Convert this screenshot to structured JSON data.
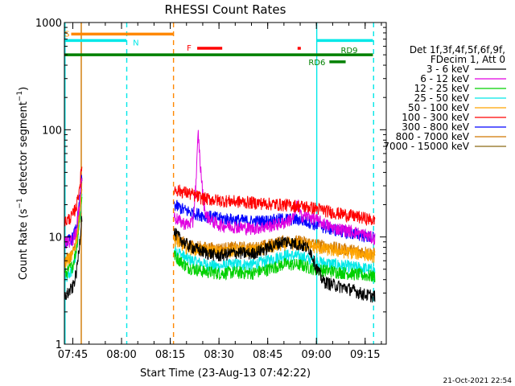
{
  "chart_data": {
    "type": "line",
    "title": "RHESSI Count Rates",
    "xlabel": "Start Time (23-Aug-13 07:42:22)",
    "ylabel": "Count Rate (s",
    "ylabel_sup": "−1",
    "ylabel_tail": " detector segment",
    "ylabel_end": ")",
    "yscale": "log",
    "x_unit": "minutes of day",
    "xlim": [
      462.4,
      561.5
    ],
    "ylim": [
      1,
      1000
    ],
    "y_ticks": [
      {
        "value": 1,
        "label": "1"
      },
      {
        "value": 10,
        "label": "10"
      },
      {
        "value": 100,
        "label": "100"
      },
      {
        "value": 1000,
        "label": "1000"
      }
    ],
    "x_ticks": [
      {
        "value": 465,
        "label": "07:45"
      },
      {
        "value": 480,
        "label": "08:00"
      },
      {
        "value": 495,
        "label": "08:15"
      },
      {
        "value": 510,
        "label": "08:30"
      },
      {
        "value": 525,
        "label": "08:45"
      },
      {
        "value": 540,
        "label": "09:00"
      },
      {
        "value": 555,
        "label": "09:15"
      }
    ],
    "legend": {
      "position": "right",
      "header": [
        "Det 1f,3f,4f,5f,6f,9f,",
        "FDecim 1, Att 0"
      ]
    },
    "series": [
      {
        "name": "3 - 6 keV",
        "color": "#000000",
        "segments": [
          {
            "x": [
              462.6,
              463.5,
              465.0,
              466.2,
              467.1,
              467.8
            ],
            "y": [
              2.8,
              3.0,
              3.4,
              4.8,
              9.0,
              16.0
            ]
          },
          {
            "x": [
              496.2,
              500,
              505,
              510,
              515,
              520,
              525,
              530,
              535,
              538,
              540,
              542,
              545,
              550,
              555,
              558
            ],
            "y": [
              11.0,
              8.5,
              7.3,
              6.7,
              7.2,
              7.0,
              7.9,
              9.2,
              8.5,
              7.7,
              5.2,
              3.9,
              3.6,
              3.3,
              2.9,
              2.8
            ]
          }
        ]
      },
      {
        "name": "6 - 12 keV",
        "color": "#e000e0",
        "segments": [
          {
            "x": [
              462.6,
              463.5,
              465.0,
              466.2,
              467.1,
              467.8
            ],
            "y": [
              9.0,
              9.0,
              9.5,
              12.0,
              22.0,
              38.0
            ]
          },
          {
            "x": [
              496.2,
              498,
              500,
              502,
              503,
              503.6,
              504.3,
              505.2,
              506,
              508,
              510,
              515,
              520,
              525,
              530,
              533,
              534.3,
              535,
              538,
              540,
              545,
              550,
              555,
              558
            ],
            "y": [
              15.5,
              14.0,
              13.2,
              13.6,
              35.0,
              95.0,
              45.0,
              22.0,
              16.0,
              14.0,
              13.0,
              12.5,
              12.0,
              12.6,
              13.6,
              15.2,
              21.0,
              16.0,
              15.5,
              14.5,
              12.2,
              11.5,
              10.5,
              9.6
            ]
          }
        ]
      },
      {
        "name": "12 - 25 keV",
        "color": "#00d000",
        "segments": [
          {
            "x": [
              462.6,
              463.5,
              465.0,
              466.2,
              467.1,
              467.8
            ],
            "y": [
              4.5,
              4.8,
              5.5,
              8.0,
              15.0,
              25.0
            ]
          },
          {
            "x": [
              496.2,
              500,
              505,
              510,
              515,
              520,
              525,
              530,
              535,
              538,
              540,
              545,
              550,
              555,
              558
            ],
            "y": [
              6.8,
              5.3,
              4.8,
              4.6,
              4.7,
              4.6,
              5.0,
              5.6,
              5.5,
              5.2,
              5.0,
              4.8,
              4.6,
              4.4,
              4.3
            ]
          }
        ]
      },
      {
        "name": "25 - 50 keV",
        "color": "#00e8e8",
        "segments": [
          {
            "x": [
              462.6,
              463.5,
              465.0,
              466.2,
              467.1,
              467.8
            ],
            "y": [
              4.0,
              4.3,
              5.0,
              7.5,
              14.0,
              24.0
            ]
          },
          {
            "x": [
              496.2,
              500,
              505,
              510,
              515,
              520,
              525,
              530,
              535,
              538,
              540,
              545,
              550,
              555,
              558
            ],
            "y": [
              7.8,
              6.3,
              5.6,
              5.3,
              5.6,
              5.5,
              6.0,
              6.8,
              6.6,
              6.2,
              5.9,
              5.6,
              5.3,
              5.1,
              4.9
            ]
          }
        ]
      },
      {
        "name": "50 - 100 keV",
        "color": "#ffa500",
        "segments": [
          {
            "x": [
              462.6,
              463.5,
              465.0,
              466.2,
              467.1,
              467.8
            ],
            "y": [
              5.8,
              6.2,
              6.8,
              9.5,
              17.0,
              30.0
            ]
          },
          {
            "x": [
              496.2,
              500,
              505,
              510,
              515,
              520,
              525,
              530,
              535,
              538,
              540,
              545,
              550,
              555,
              558
            ],
            "y": [
              9.5,
              8.0,
              7.5,
              7.3,
              7.5,
              7.4,
              7.9,
              8.6,
              8.6,
              8.3,
              8.0,
              7.5,
              7.2,
              6.9,
              6.6
            ]
          }
        ]
      },
      {
        "name": "100 - 300 keV",
        "color": "#ff0000",
        "segments": [
          {
            "x": [
              462.6,
              463.5,
              465.0,
              466.2,
              467.1,
              467.8
            ],
            "y": [
              14.0,
              14.5,
              16.0,
              20.0,
              30.0,
              45.0
            ]
          },
          {
            "x": [
              496.2,
              500,
              505,
              510,
              515,
              520,
              525,
              530,
              535,
              538,
              540,
              545,
              550,
              555,
              558
            ],
            "y": [
              28.0,
              26.0,
              23.0,
              22.0,
              21.5,
              21.0,
              20.5,
              20.0,
              19.5,
              19.0,
              18.5,
              17.0,
              16.0,
              15.0,
              14.2
            ]
          }
        ]
      },
      {
        "name": "300 - 800 keV",
        "color": "#0000ff",
        "segments": [
          {
            "x": [
              462.6,
              463.5,
              465.0,
              466.2,
              467.1,
              467.8
            ],
            "y": [
              9.0,
              9.2,
              9.8,
              12.5,
              22.0,
              36.0
            ]
          },
          {
            "x": [
              496.2,
              500,
              505,
              510,
              515,
              520,
              525,
              530,
              535,
              538,
              540,
              545,
              550,
              555,
              558
            ],
            "y": [
              20.0,
              17.5,
              16.0,
              15.0,
              14.5,
              14.0,
              14.2,
              14.8,
              14.5,
              13.8,
              13.0,
              11.8,
              11.0,
              10.3,
              9.7
            ]
          }
        ]
      },
      {
        "name": "800 - 7000 keV",
        "color": "#d07800",
        "segments": [
          {
            "x": [
              462.6,
              463.5,
              465.0,
              466.2,
              467.1,
              467.8
            ],
            "y": [
              6.0,
              6.4,
              7.0,
              9.8,
              18.0,
              32.0
            ]
          },
          {
            "x": [
              496.2,
              500,
              505,
              510,
              515,
              520,
              525,
              530,
              535,
              538,
              540,
              545,
              550,
              555,
              558
            ],
            "y": [
              10.0,
              8.6,
              8.0,
              7.8,
              8.0,
              7.9,
              8.4,
              9.2,
              9.1,
              8.8,
              8.5,
              8.0,
              7.6,
              7.3,
              7.0
            ]
          }
        ]
      },
      {
        "name": "7000 - 15000 keV",
        "color": "#8b6914",
        "segments": []
      }
    ],
    "vlines": [
      {
        "x": 462.6,
        "color": "#00e8e8",
        "style": "solid"
      },
      {
        "x": 467.6,
        "color": "#d07800",
        "style": "solid"
      },
      {
        "x": 481.6,
        "color": "#00e8e8",
        "style": "dashed"
      },
      {
        "x": 496.0,
        "color": "#ff8800",
        "style": "dashed"
      },
      {
        "x": 540.1,
        "color": "#00e8e8",
        "style": "solid"
      },
      {
        "x": 557.6,
        "color": "#00e8e8",
        "style": "dashed"
      }
    ],
    "flag_bars": [
      {
        "label": "S",
        "color": "#ff8800",
        "x_start": 464.5,
        "x_end": 496.0,
        "y": 780
      },
      {
        "label": "N",
        "color": "#00e8e8",
        "x_start": 462.4,
        "x_end": 481.5,
        "y": 680
      },
      {
        "label": "",
        "color": "#00e8e8",
        "x_start": 540.1,
        "x_end": 557.4,
        "y": 680
      },
      {
        "label": "F",
        "color": "#ff0000",
        "x_start": 503.3,
        "x_end": 511.0,
        "y": 575
      },
      {
        "label": "",
        "color": "#ff0000",
        "x_start": 534.2,
        "x_end": 535.2,
        "y": 575
      },
      {
        "label": "RD9",
        "color": "#008000",
        "x_start": 462.4,
        "x_end": 557.4,
        "y": 500
      },
      {
        "label": "RD6",
        "color": "#008000",
        "x_start": 544.0,
        "x_end": 549.0,
        "y": 430
      }
    ],
    "timestamp": "21-Oct-2021 22:54"
  }
}
